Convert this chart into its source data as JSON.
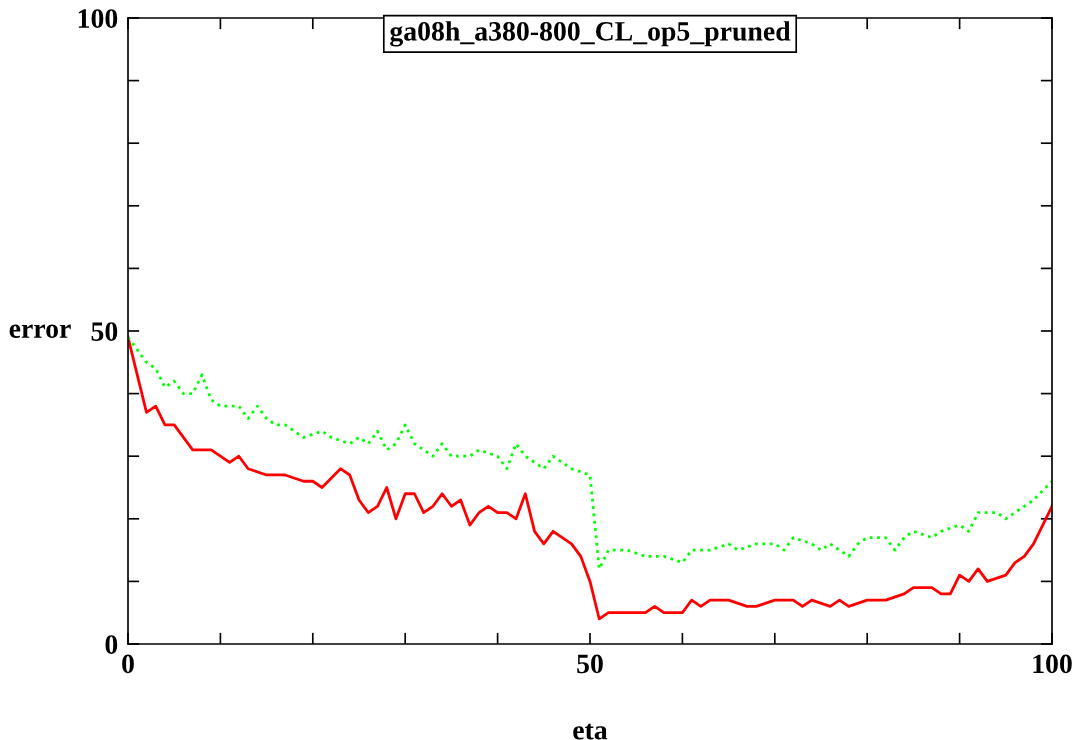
{
  "chart_data": {
    "type": "line",
    "title": "ga08h_a380-800_CL_op5_pruned",
    "xlabel": "eta",
    "ylabel": "error",
    "xlim": [
      0,
      100
    ],
    "ylim": [
      0,
      100
    ],
    "xticks": [
      0,
      {
        "value": 10,
        "label": null
      },
      {
        "value": 20,
        "label": null
      },
      {
        "value": 30,
        "label": null
      },
      {
        "value": 40,
        "label": null
      },
      50,
      {
        "value": 60,
        "label": null
      },
      {
        "value": 70,
        "label": null
      },
      {
        "value": 80,
        "label": null
      },
      {
        "value": 90,
        "label": null
      },
      100
    ],
    "yticks": [
      0,
      {
        "value": 10,
        "label": null
      },
      {
        "value": 20,
        "label": null
      },
      {
        "value": 30,
        "label": null
      },
      {
        "value": 40,
        "label": null
      },
      50,
      {
        "value": 60,
        "label": null
      },
      {
        "value": 70,
        "label": null
      },
      {
        "value": 80,
        "label": null
      },
      {
        "value": 90,
        "label": null
      },
      100
    ],
    "grid": false,
    "legend": false,
    "marker": "none",
    "series": [
      {
        "color": "#ff0000",
        "line_style": "solid",
        "x": [
          0,
          1,
          2,
          3,
          4,
          5,
          7,
          9,
          11,
          12,
          13,
          15,
          17,
          19,
          20,
          21,
          23,
          24,
          25,
          26,
          27,
          28,
          29,
          30,
          31,
          32,
          33,
          34,
          35,
          36,
          37,
          38,
          39,
          40,
          41,
          42,
          43,
          44,
          45,
          46,
          47,
          48,
          49,
          50,
          51,
          52,
          54,
          56,
          57,
          58,
          60,
          61,
          62,
          63,
          65,
          67,
          68,
          70,
          72,
          73,
          74,
          76,
          77,
          78,
          80,
          82,
          84,
          85,
          87,
          88,
          89,
          90,
          91,
          92,
          93,
          95,
          96,
          97,
          98,
          100
        ],
        "values": [
          49,
          43,
          37,
          38,
          35,
          35,
          31,
          31,
          29,
          30,
          28,
          27,
          27,
          26,
          26,
          25,
          28,
          27,
          23,
          21,
          22,
          25,
          20,
          24,
          24,
          21,
          22,
          24,
          22,
          23,
          19,
          21,
          22,
          21,
          21,
          20,
          24,
          18,
          16,
          18,
          17,
          16,
          14,
          10,
          4,
          5,
          5,
          5,
          6,
          5,
          5,
          7,
          6,
          7,
          7,
          6,
          6,
          7,
          7,
          6,
          7,
          6,
          7,
          6,
          7,
          7,
          8,
          9,
          9,
          8,
          8,
          11,
          10,
          12,
          10,
          11,
          13,
          14,
          16,
          22
        ]
      },
      {
        "color": "#00ff00",
        "line_style": "dotted",
        "x": [
          0,
          1,
          2,
          3,
          4,
          5,
          6,
          7,
          8,
          9,
          10,
          12,
          13,
          14,
          15,
          16,
          17,
          19,
          21,
          22,
          24,
          25,
          26,
          27,
          28,
          29,
          30,
          31,
          33,
          34,
          35,
          37,
          38,
          40,
          41,
          42,
          43,
          44,
          45,
          46,
          48,
          50,
          51,
          52,
          54,
          56,
          58,
          60,
          61,
          63,
          65,
          66,
          68,
          70,
          71,
          72,
          74,
          75,
          76,
          78,
          79,
          80,
          82,
          83,
          84,
          85,
          87,
          88,
          90,
          91,
          92,
          93,
          94,
          95,
          96,
          98,
          100
        ],
        "values": [
          49,
          47,
          45,
          44,
          41,
          42,
          40,
          40,
          43,
          39,
          38,
          38,
          36,
          38,
          36,
          35,
          35,
          33,
          34,
          33,
          32,
          33,
          32,
          34,
          31,
          32,
          35,
          32,
          30,
          32,
          30,
          30,
          31,
          30,
          28,
          32,
          30,
          29,
          28,
          30,
          28,
          27,
          12,
          15,
          15,
          14,
          14,
          13,
          15,
          15,
          16,
          15,
          16,
          16,
          15,
          17,
          16,
          15,
          16,
          14,
          16,
          17,
          17,
          15,
          17,
          18,
          17,
          18,
          19,
          18,
          21,
          21,
          21,
          20,
          21,
          23,
          26
        ]
      }
    ]
  }
}
